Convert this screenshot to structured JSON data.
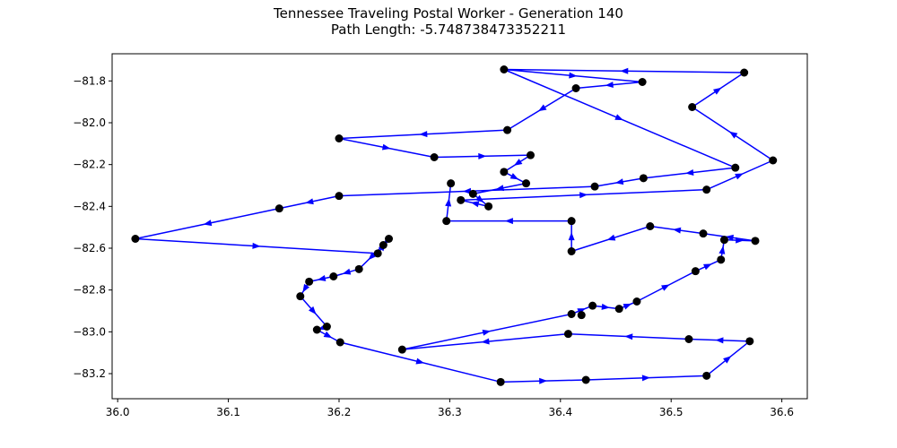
{
  "chart_data": {
    "type": "line",
    "title": "Tennessee Traveling Postal Worker - Generation 140",
    "subtitle": "Path Length: -5.748738473352211",
    "xlabel": "",
    "ylabel": "",
    "xlim": [
      35.995,
      36.623
    ],
    "ylim": [
      -83.32,
      -81.67
    ],
    "xticks": [
      36.0,
      36.1,
      36.2,
      36.3,
      36.4,
      36.5,
      36.6
    ],
    "xtick_labels": [
      "36.0",
      "36.1",
      "36.2",
      "36.3",
      "36.4",
      "36.5",
      "36.6"
    ],
    "yticks": [
      -81.8,
      -82.0,
      -82.2,
      -82.4,
      -82.6,
      -82.8,
      -83.0,
      -83.2
    ],
    "ytick_labels": [
      "−81.8",
      "−82.0",
      "−82.2",
      "−82.4",
      "−82.6",
      "−82.8",
      "−83.0",
      "−83.2"
    ],
    "grid": false,
    "line_color": "#0000ff",
    "point_color": "#000000",
    "path": [
      [
        36.349,
        -81.745
      ],
      [
        36.474,
        -81.805
      ],
      [
        36.414,
        -81.835
      ],
      [
        36.352,
        -82.035
      ],
      [
        36.2,
        -82.075
      ],
      [
        36.286,
        -82.165
      ],
      [
        36.373,
        -82.155
      ],
      [
        36.349,
        -82.235
      ],
      [
        36.369,
        -82.29
      ],
      [
        36.321,
        -82.34
      ],
      [
        36.335,
        -82.4
      ],
      [
        36.31,
        -82.37
      ],
      [
        36.532,
        -82.32
      ],
      [
        36.592,
        -82.18
      ],
      [
        36.519,
        -81.925
      ],
      [
        36.566,
        -81.76
      ],
      [
        36.349,
        -81.745
      ],
      [
        36.558,
        -82.215
      ],
      [
        36.475,
        -82.265
      ],
      [
        36.431,
        -82.305
      ],
      [
        36.2,
        -82.35
      ],
      [
        36.146,
        -82.41
      ],
      [
        36.016,
        -82.555
      ],
      [
        36.235,
        -82.625
      ],
      [
        36.245,
        -82.555
      ],
      [
        36.24,
        -82.585
      ],
      [
        36.218,
        -82.7
      ],
      [
        36.195,
        -82.735
      ],
      [
        36.173,
        -82.76
      ],
      [
        36.165,
        -82.83
      ],
      [
        36.189,
        -82.975
      ],
      [
        36.18,
        -82.99
      ],
      [
        36.201,
        -83.05
      ],
      [
        36.346,
        -83.24
      ],
      [
        36.423,
        -83.23
      ],
      [
        36.532,
        -83.21
      ],
      [
        36.571,
        -83.045
      ],
      [
        36.516,
        -83.035
      ],
      [
        36.407,
        -83.01
      ],
      [
        36.257,
        -83.085
      ],
      [
        36.41,
        -82.915
      ],
      [
        36.429,
        -82.875
      ],
      [
        36.453,
        -82.89
      ],
      [
        36.469,
        -82.855
      ],
      [
        36.522,
        -82.71
      ],
      [
        36.545,
        -82.655
      ],
      [
        36.548,
        -82.56
      ],
      [
        36.576,
        -82.565
      ],
      [
        36.529,
        -82.53
      ],
      [
        36.481,
        -82.495
      ],
      [
        36.41,
        -82.615
      ],
      [
        36.41,
        -82.47
      ],
      [
        36.297,
        -82.47
      ],
      [
        36.301,
        -82.29
      ]
    ],
    "points": [
      [
        36.349,
        -81.745
      ],
      [
        36.566,
        -81.76
      ],
      [
        36.474,
        -81.805
      ],
      [
        36.414,
        -81.835
      ],
      [
        36.519,
        -81.925
      ],
      [
        36.352,
        -82.035
      ],
      [
        36.2,
        -82.075
      ],
      [
        36.286,
        -82.165
      ],
      [
        36.373,
        -82.155
      ],
      [
        36.592,
        -82.18
      ],
      [
        36.558,
        -82.215
      ],
      [
        36.349,
        -82.235
      ],
      [
        36.475,
        -82.265
      ],
      [
        36.369,
        -82.29
      ],
      [
        36.301,
        -82.29
      ],
      [
        36.431,
        -82.305
      ],
      [
        36.532,
        -82.32
      ],
      [
        36.321,
        -82.34
      ],
      [
        36.2,
        -82.35
      ],
      [
        36.31,
        -82.37
      ],
      [
        36.335,
        -82.4
      ],
      [
        36.146,
        -82.41
      ],
      [
        36.297,
        -82.47
      ],
      [
        36.41,
        -82.47
      ],
      [
        36.481,
        -82.495
      ],
      [
        36.529,
        -82.53
      ],
      [
        36.016,
        -82.555
      ],
      [
        36.245,
        -82.555
      ],
      [
        36.548,
        -82.56
      ],
      [
        36.576,
        -82.565
      ],
      [
        36.24,
        -82.585
      ],
      [
        36.41,
        -82.615
      ],
      [
        36.235,
        -82.625
      ],
      [
        36.545,
        -82.655
      ],
      [
        36.218,
        -82.7
      ],
      [
        36.522,
        -82.71
      ],
      [
        36.195,
        -82.735
      ],
      [
        36.173,
        -82.76
      ],
      [
        36.165,
        -82.83
      ],
      [
        36.469,
        -82.855
      ],
      [
        36.429,
        -82.875
      ],
      [
        36.453,
        -82.89
      ],
      [
        36.41,
        -82.915
      ],
      [
        36.419,
        -82.92
      ],
      [
        36.189,
        -82.975
      ],
      [
        36.18,
        -82.99
      ],
      [
        36.407,
        -83.01
      ],
      [
        36.516,
        -83.035
      ],
      [
        36.571,
        -83.045
      ],
      [
        36.201,
        -83.05
      ],
      [
        36.257,
        -83.085
      ],
      [
        36.532,
        -83.21
      ],
      [
        36.423,
        -83.23
      ],
      [
        36.346,
        -83.24
      ]
    ]
  }
}
